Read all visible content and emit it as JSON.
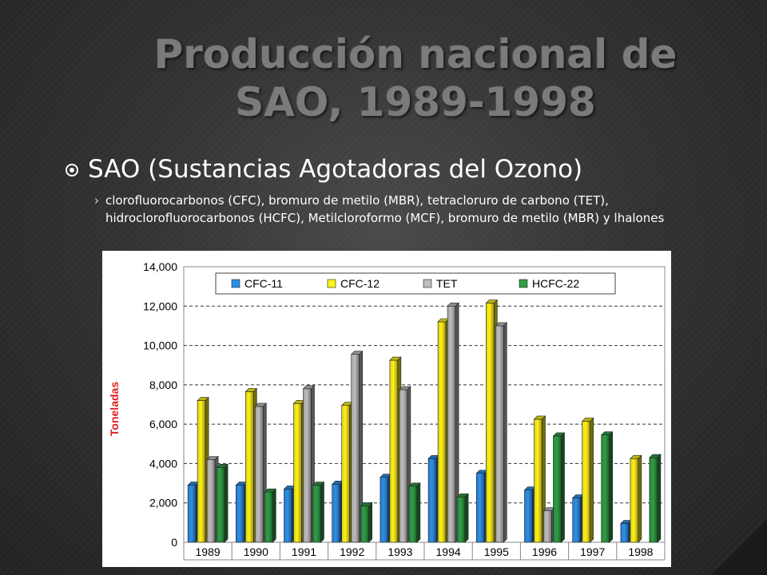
{
  "slide": {
    "title": "Producción nacional de SAO, 1989-1998",
    "bullet": "SAO (Sustancias Agotadoras del Ozono)",
    "subbullet": "clorofluorocarbonos (CFC), bromuro de metilo (MBR), tetracloruro de carbono (TET), hidroclorofluorocarbonos (HCFC), Metilcloroformo (MCF), bromuro de metilo (MBR) y lhalones",
    "submark": "›"
  },
  "chart_data": {
    "type": "bar",
    "title": "",
    "xlabel": "",
    "ylabel": "Toneladas",
    "ylim": [
      0,
      14000
    ],
    "yticks": [
      0,
      2000,
      4000,
      6000,
      8000,
      10000,
      12000,
      14000
    ],
    "ytick_labels": [
      "0",
      "2,000",
      "4,000",
      "6,000",
      "8,000",
      "10,000",
      "12,000",
      "14,000"
    ],
    "grid": "horizontal dashed",
    "legend": "top",
    "categories": [
      "1989",
      "1990",
      "1991",
      "1992",
      "1993",
      "1994",
      "1995",
      "1996",
      "1997",
      "1998"
    ],
    "series": [
      {
        "name": "CFC-11",
        "color": "#2f8fe8",
        "values": [
          2900,
          2900,
          2700,
          2950,
          3300,
          4250,
          3500,
          2650,
          2250,
          950
        ]
      },
      {
        "name": "CFC-12",
        "color": "#fff21a",
        "values": [
          7200,
          7650,
          7050,
          6950,
          9250,
          11200,
          12150,
          6250,
          6150,
          4250
        ]
      },
      {
        "name": "TET",
        "color": "#bdbdbd",
        "values": [
          4200,
          6900,
          7800,
          9550,
          7750,
          12000,
          11000,
          1600,
          0,
          0
        ]
      },
      {
        "name": "HCFC-22",
        "color": "#2e9e45",
        "values": [
          3800,
          2550,
          2900,
          1850,
          2850,
          2300,
          0,
          5400,
          5450,
          4300
        ]
      }
    ]
  }
}
